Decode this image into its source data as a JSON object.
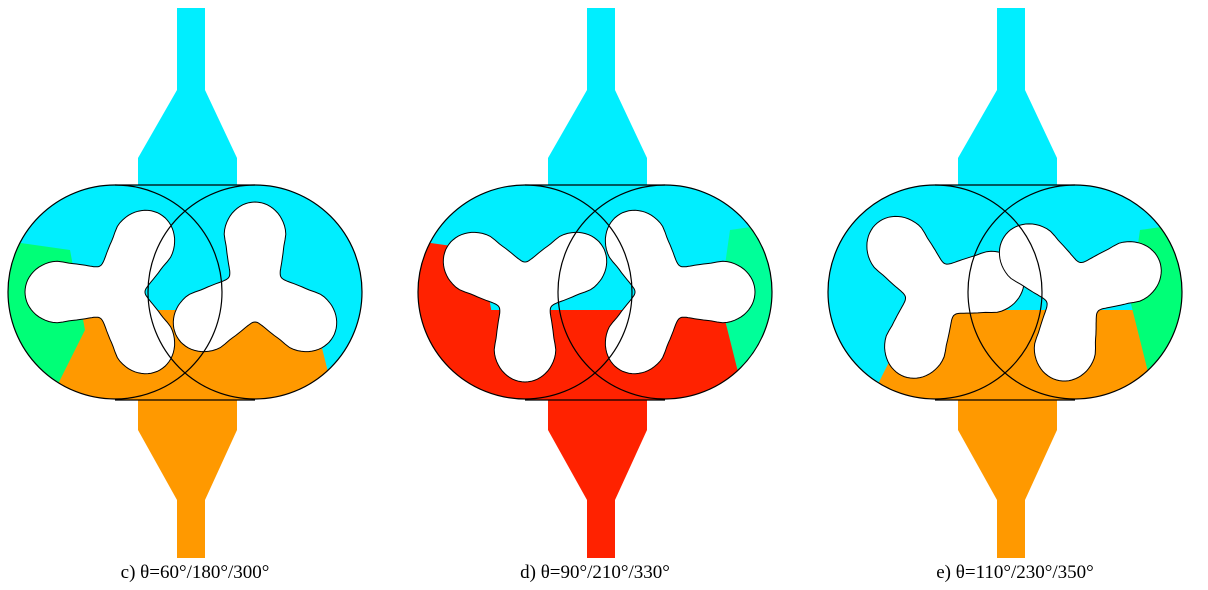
{
  "colors": {
    "suction": "#00eeff",
    "discharge": "#ff9900",
    "high_pressure": "#ff2200",
    "transition_green": "#00ff77",
    "rotor": "#ffffff",
    "outline": "#000000"
  },
  "panels": [
    {
      "caption": "c) θ=60°/180°/300°",
      "inlet_color": "#00eeff",
      "outlet_color": "#ff9900",
      "upper_fill": "#00eeff",
      "lower_fill": "#ff9900",
      "left_side_fill": "#00ff77",
      "right_side_fill": "#00eeff",
      "rotor_left_angle": 60,
      "rotor_right_angle": 30
    },
    {
      "caption": "d) θ=90°/210°/330°",
      "inlet_color": "#00eeff",
      "outlet_color": "#ff2200",
      "upper_fill": "#00eeff",
      "lower_fill": "#ff2200",
      "left_side_fill": "#ff2200",
      "right_side_fill": "#00ff99",
      "rotor_left_angle": 90,
      "rotor_right_angle": 0
    },
    {
      "caption": "e) θ=110°/230°/350°",
      "inlet_color": "#00eeff",
      "outlet_color": "#ff9900",
      "upper_fill": "#00eeff",
      "lower_fill": "#ff9900",
      "left_side_fill": "#00eeff",
      "right_side_fill": "#00ff77",
      "rotor_left_angle": 110,
      "rotor_right_angle": -20
    }
  ]
}
